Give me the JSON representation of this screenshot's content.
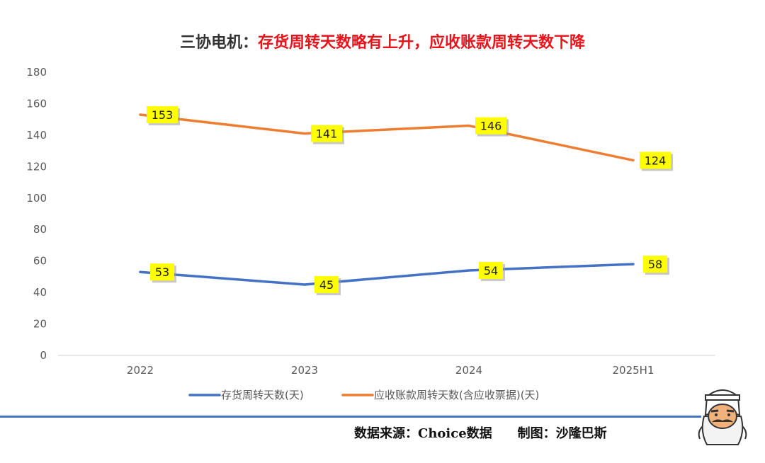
{
  "title": {
    "prefix": "三协电机：",
    "main": "存货周转天数略有上升，应收账款周转天数下降"
  },
  "footer": {
    "source": "数据来源：Choice数据",
    "author": "制图：沙隆巴斯"
  },
  "colors": {
    "series1": "#4472c4",
    "series2": "#ed7d31",
    "label_bg": "#ffff00",
    "rule": "#4472c4"
  },
  "chart_data": {
    "type": "line",
    "categories": [
      "2022",
      "2023",
      "2024",
      "2025H1"
    ],
    "ylim": [
      0,
      180
    ],
    "yticks": [
      0,
      20,
      40,
      60,
      80,
      100,
      120,
      140,
      160,
      180
    ],
    "grid": false,
    "legend": "bottom",
    "series": [
      {
        "name": "存货周转天数(天)",
        "values": [
          53,
          45,
          54,
          58
        ]
      },
      {
        "name": "应收账款周转天数(含应收票据)(天)",
        "values": [
          153,
          141,
          146,
          124
        ]
      }
    ]
  }
}
